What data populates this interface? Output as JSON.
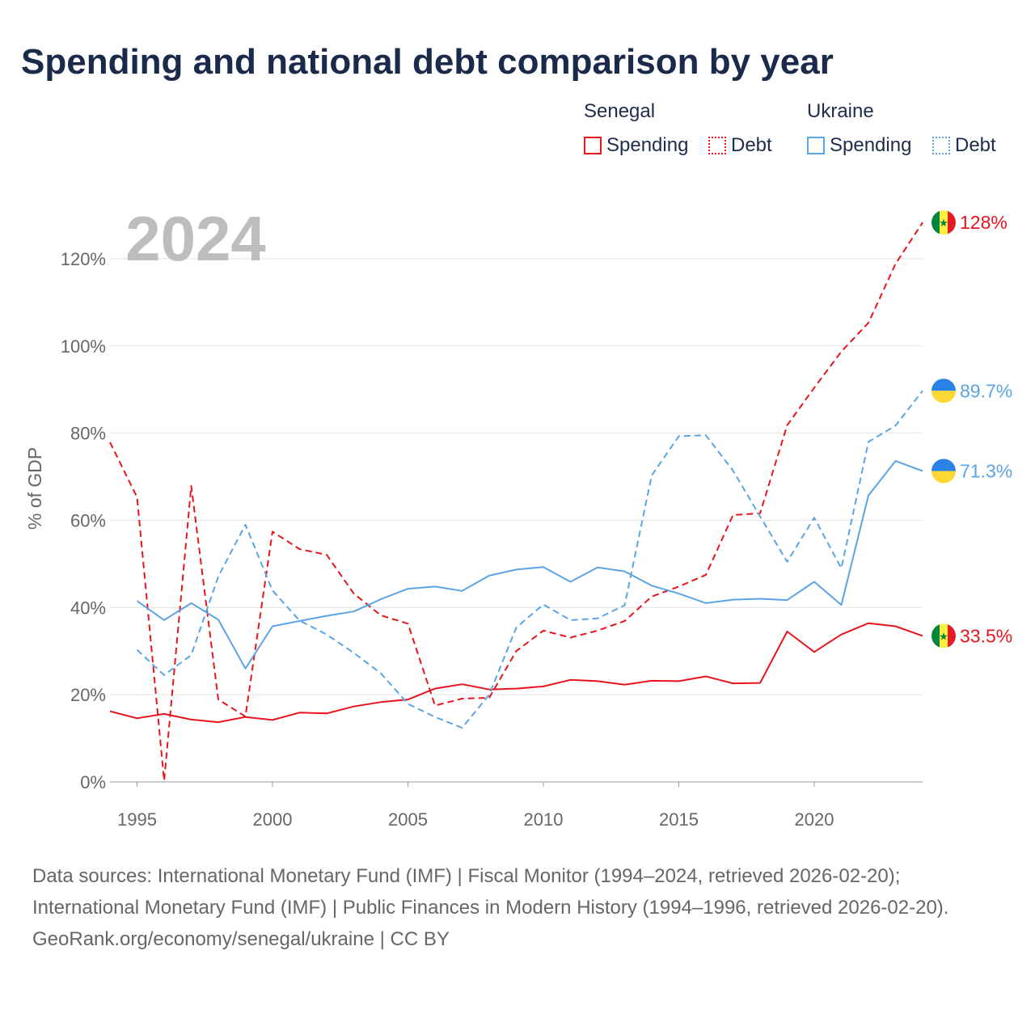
{
  "title": "Spending and national debt comparison by year",
  "legend": [
    {
      "group": "Senegal",
      "color": "#e8141c",
      "items": [
        {
          "label": "Spending",
          "style": "solid"
        },
        {
          "label": "Debt",
          "style": "dotted"
        }
      ]
    },
    {
      "group": "Ukraine",
      "color": "#5ba4e5",
      "items": [
        {
          "label": "Spending",
          "style": "solid"
        },
        {
          "label": "Debt",
          "style": "dotted"
        }
      ]
    }
  ],
  "footer": {
    "sources": "Data sources: International Monetary Fund (IMF) | Fiscal Monitor (1994–2024, retrieved 2026-02-20); International Monetary Fund (IMF) | Public Finances in Modern History (1994–1996, retrieved 2026-02-20).",
    "credit": "GeoRank.org/economy/senegal/ukraine | CC BY"
  },
  "chart_data": {
    "type": "line",
    "title": "Spending and national debt comparison by year",
    "year_label": "2024",
    "xlabel": "",
    "ylabel": "% of GDP",
    "xlim": [
      1994,
      2024
    ],
    "ylim": [
      0,
      130
    ],
    "x_ticks": [
      1995,
      2000,
      2005,
      2010,
      2015,
      2020
    ],
    "y_ticks": [
      0,
      20,
      40,
      60,
      80,
      100,
      120
    ],
    "y_tick_labels": [
      "0%",
      "20%",
      "40%",
      "60%",
      "80%",
      "100%",
      "120%"
    ],
    "grid": true,
    "series": [
      {
        "name": "Senegal Debt",
        "country": "Senegal",
        "measure": "Debt",
        "color": "#e8141c",
        "dashed": true,
        "flag": "senegal",
        "end_label": "128%",
        "x": [
          1994,
          1995,
          1996,
          1997,
          1998,
          1999,
          2000,
          2001,
          2002,
          2003,
          2004,
          2005,
          2006,
          2007,
          2008,
          2009,
          2010,
          2011,
          2012,
          2013,
          2014,
          2015,
          2016,
          2017,
          2018,
          2019,
          2020,
          2021,
          2022,
          2023,
          2024
        ],
        "values": [
          77.9,
          65.3,
          0.3,
          67.9,
          18.9,
          15.0,
          57.4,
          53.4,
          52.1,
          43.2,
          38.2,
          36.3,
          17.5,
          19.1,
          19.3,
          30.0,
          34.7,
          33.1,
          34.7,
          36.9,
          42.5,
          44.8,
          47.5,
          61.2,
          61.6,
          81.8,
          90.4,
          98.7,
          105.3,
          118.8,
          128.3
        ]
      },
      {
        "name": "Senegal Spending",
        "country": "Senegal",
        "measure": "Spending",
        "color": "#e8141c",
        "dashed": false,
        "flag": "senegal",
        "end_label": "33.5%",
        "x": [
          1994,
          1995,
          1996,
          1997,
          1998,
          1999,
          2000,
          2001,
          2002,
          2003,
          2004,
          2005,
          2006,
          2007,
          2008,
          2009,
          2010,
          2011,
          2012,
          2013,
          2014,
          2015,
          2016,
          2017,
          2018,
          2019,
          2020,
          2021,
          2022,
          2023,
          2024
        ],
        "values": [
          16.2,
          14.6,
          15.6,
          14.3,
          13.7,
          14.9,
          14.2,
          15.9,
          15.7,
          17.3,
          18.3,
          18.9,
          21.4,
          22.4,
          21.2,
          21.4,
          21.9,
          23.4,
          23.1,
          22.3,
          23.2,
          23.1,
          24.2,
          22.6,
          22.7,
          34.5,
          29.8,
          33.8,
          36.4,
          35.7,
          33.5
        ]
      },
      {
        "name": "Ukraine Debt",
        "country": "Ukraine",
        "measure": "Debt",
        "color": "#5ba4e5",
        "dashed": true,
        "flag": "ukraine",
        "end_label": "89.7%",
        "x": [
          1995,
          1996,
          1997,
          1998,
          1999,
          2000,
          2001,
          2002,
          2003,
          2004,
          2005,
          2006,
          2007,
          2008,
          2009,
          2010,
          2011,
          2012,
          2013,
          2014,
          2015,
          2016,
          2017,
          2018,
          2019,
          2020,
          2021,
          2022,
          2023,
          2024
        ],
        "values": [
          30.3,
          24.5,
          29.1,
          47.1,
          59.0,
          43.9,
          37.0,
          33.8,
          29.6,
          24.9,
          17.9,
          14.9,
          12.4,
          20.0,
          35.4,
          40.7,
          37.1,
          37.5,
          40.5,
          70.3,
          79.3,
          79.5,
          71.4,
          60.9,
          50.5,
          60.6,
          49.0,
          78.0,
          81.7,
          89.7
        ]
      },
      {
        "name": "Ukraine Spending",
        "country": "Ukraine",
        "measure": "Spending",
        "color": "#5ba4e5",
        "dashed": false,
        "flag": "ukraine",
        "end_label": "71.3%",
        "x": [
          1995,
          1996,
          1997,
          1998,
          1999,
          2000,
          2001,
          2002,
          2003,
          2004,
          2005,
          2006,
          2007,
          2008,
          2009,
          2010,
          2011,
          2012,
          2013,
          2014,
          2015,
          2016,
          2017,
          2018,
          2019,
          2020,
          2021,
          2022,
          2023,
          2024
        ],
        "values": [
          41.5,
          37.1,
          41.0,
          37.2,
          26.0,
          35.7,
          36.9,
          38.1,
          39.1,
          41.9,
          44.3,
          44.8,
          43.8,
          47.3,
          48.7,
          49.3,
          45.9,
          49.2,
          48.3,
          45.0,
          43.2,
          41.0,
          41.8,
          42.0,
          41.7,
          45.9,
          40.6,
          65.7,
          73.6,
          71.3
        ]
      }
    ]
  }
}
